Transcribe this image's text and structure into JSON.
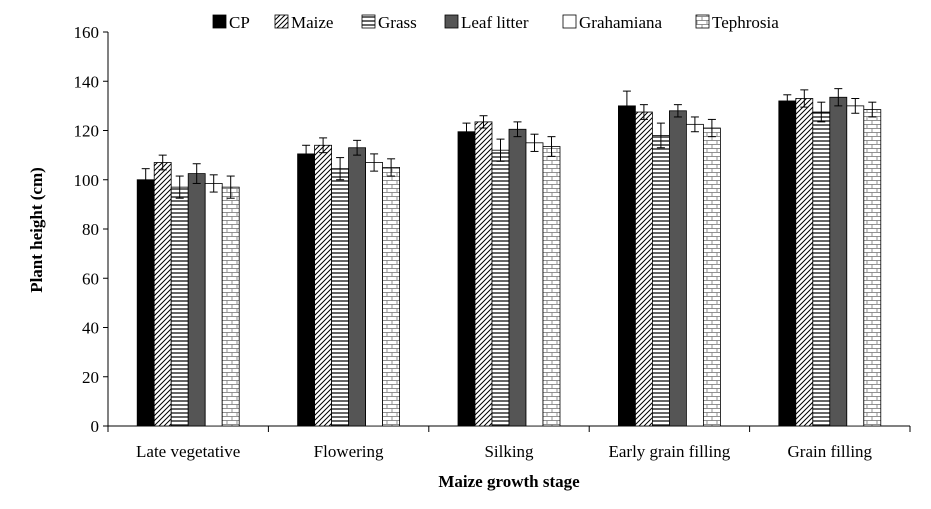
{
  "chart_data": {
    "type": "bar",
    "title": "",
    "xlabel": "Maize growth stage",
    "ylabel": "Plant height (cm)",
    "ylim": [
      0,
      160
    ],
    "yticks": [
      0,
      20,
      40,
      60,
      80,
      100,
      120,
      140,
      160
    ],
    "grid": false,
    "legend_position": "top",
    "categories": [
      "Late vegetative",
      "Flowering",
      "Silking",
      "Early grain filling",
      "Grain filling"
    ],
    "series": [
      {
        "name": "CP",
        "pattern": "solid-black",
        "values": [
          100,
          110.5,
          119.5,
          130,
          132
        ],
        "errors": [
          4.5,
          3.5,
          3.5,
          6,
          2.5
        ]
      },
      {
        "name": "Maize",
        "pattern": "diagonal",
        "values": [
          107,
          114,
          123.5,
          127.5,
          133
        ],
        "errors": [
          3,
          3,
          2.5,
          3,
          3.5
        ]
      },
      {
        "name": "Grass",
        "pattern": "horizontal",
        "values": [
          97,
          104.5,
          112,
          118,
          127.5
        ],
        "errors": [
          4.5,
          4.5,
          4.5,
          5,
          4
        ]
      },
      {
        "name": "Leaf litter",
        "pattern": "solid-gray",
        "values": [
          102.5,
          113,
          120.5,
          128,
          133.5
        ],
        "errors": [
          4,
          3,
          3,
          2.5,
          3.5
        ]
      },
      {
        "name": "Grahamiana",
        "pattern": "white",
        "values": [
          98.5,
          107,
          115,
          122.5,
          130
        ],
        "errors": [
          3.5,
          3.5,
          3.5,
          3,
          3
        ]
      },
      {
        "name": "Tephrosia",
        "pattern": "brick",
        "values": [
          97,
          105,
          113.5,
          121,
          128.5
        ],
        "errors": [
          4.5,
          3.5,
          4,
          3.5,
          3
        ]
      }
    ]
  }
}
